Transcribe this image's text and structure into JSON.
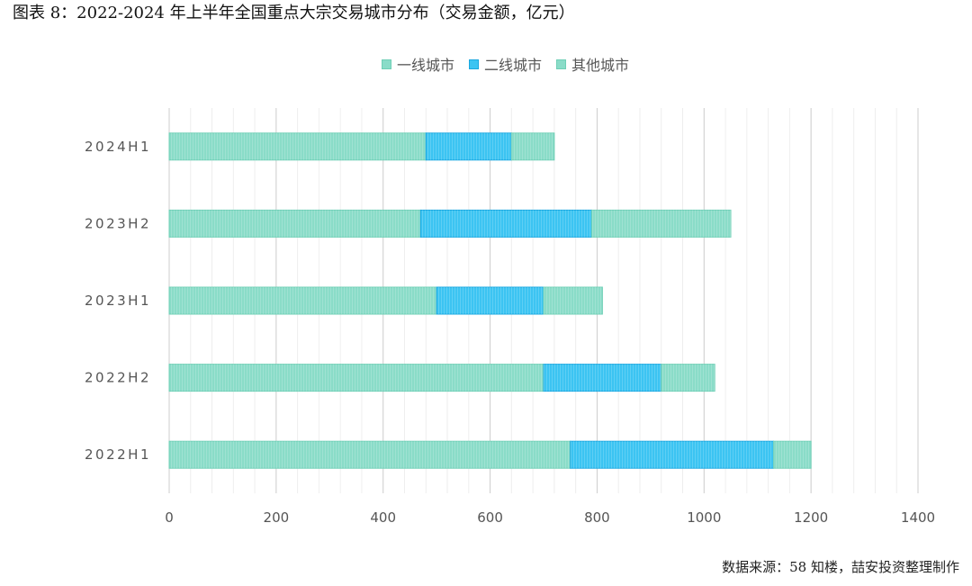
{
  "figure": {
    "title": "图表 8：2022-2024 年上半年全国重点大宗交易城市分布（交易金额，亿元）",
    "source": "数据来源：58 知楼，喆安投资整理制作"
  },
  "colors": {
    "tier1": "#8adcc8",
    "tier2": "#3cc4f2",
    "other": "#8adcc8",
    "grid_major": "#cccccc",
    "grid_minor": "#eeeeee",
    "axis_text": "#555555"
  },
  "chart_data": {
    "type": "bar",
    "orientation": "horizontal",
    "stacked": true,
    "categories": [
      "2024H1",
      "2023H2",
      "2023H1",
      "2022H2",
      "2022H1"
    ],
    "series": [
      {
        "name": "一线城市",
        "values": [
          480,
          470,
          500,
          700,
          750
        ]
      },
      {
        "name": "二线城市",
        "values": [
          160,
          320,
          200,
          220,
          380
        ]
      },
      {
        "name": "其他城市",
        "values": [
          80,
          260,
          110,
          100,
          70
        ]
      }
    ],
    "xlim": [
      0,
      1400
    ],
    "xticks": [
      "0",
      "200",
      "400",
      "600",
      "800",
      "1000",
      "1200",
      "1400"
    ],
    "grid": true,
    "legend": "top-center"
  }
}
